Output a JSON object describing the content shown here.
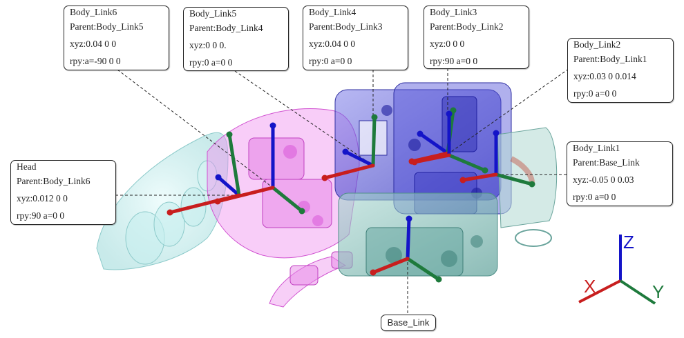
{
  "colors": {
    "x_axis": "#c81e1e",
    "y_axis": "#1e7a3c",
    "z_axis": "#1414c8",
    "head_part": "#b8ecec",
    "neck_part": "#e060e0",
    "body_part": "#4040d0",
    "base_part": "#70b0a8"
  },
  "links": [
    {
      "id": "body_link6",
      "name": "Body_Link6",
      "parent": "Parent:Body_Link5",
      "xyz": "xyz:0.04 0 0",
      "rpy": "rpy:a=-90 0 0"
    },
    {
      "id": "body_link5",
      "name": "Body_Link5",
      "parent": "Parent:Body_Link4",
      "xyz": "xyz:0 0 0.",
      "rpy": "rpy:0 a=0 0"
    },
    {
      "id": "body_link4",
      "name": "Body_Link4",
      "parent": "Parent:Body_Link3",
      "xyz": "xyz:0.04 0 0",
      "rpy": "rpy:0 a=0 0"
    },
    {
      "id": "body_link3",
      "name": "Body_Link3",
      "parent": "Parent:Body_Link2",
      "xyz": "xyz:0 0 0",
      "rpy": "rpy:90 a=0 0"
    },
    {
      "id": "body_link2",
      "name": "Body_Link2",
      "parent": "Parent:Body_Link1",
      "xyz": "xyz:0.03 0 0.014",
      "rpy": "rpy:0 a=0 0"
    },
    {
      "id": "body_link1",
      "name": "Body_Link1",
      "parent": "Parent:Base_Link",
      "xyz": "xyz:-0.05 0 0.03",
      "rpy": "rpy:0 a=0 0"
    },
    {
      "id": "head",
      "name": "Head",
      "parent": "Parent:Body_Link6",
      "xyz": "xyz:0.012 0 0",
      "rpy": "rpy:90 a=0 0"
    }
  ],
  "base_link": {
    "name": "Base_Link"
  },
  "axis_legend": {
    "x": "X",
    "y": "Y",
    "z": "Z"
  },
  "frame_icon": "coordinate-frame-triad"
}
